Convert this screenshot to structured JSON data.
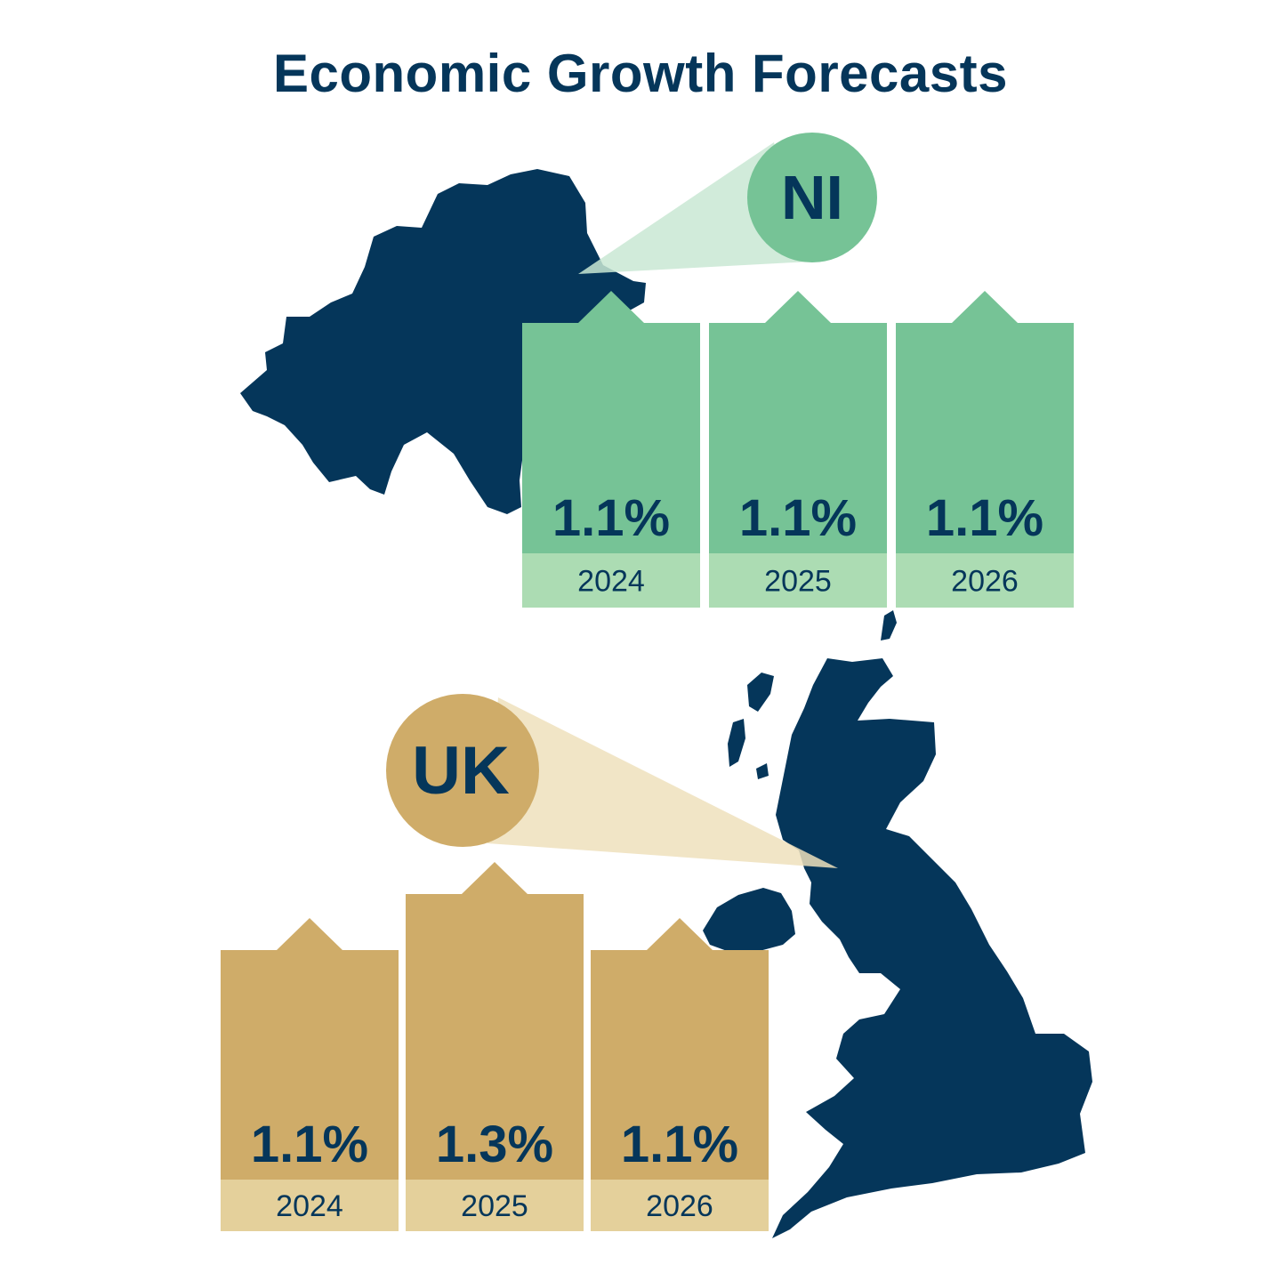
{
  "title": "Economic Growth Forecasts",
  "colors": {
    "navy": "#05365a",
    "ni_bar": "#76c396",
    "ni_label_bg": "#acdcb3",
    "ni_beam": "#c9e8d3",
    "uk_bar": "#cfac69",
    "uk_label_bg": "#e4d09b",
    "uk_beam": "#efe1bc"
  },
  "chart_data": [
    {
      "type": "bar",
      "region": "NI",
      "categories": [
        "2024",
        "2025",
        "2026"
      ],
      "values": [
        1.1,
        1.1,
        1.1
      ],
      "value_labels": [
        "1.1%",
        "1.1%",
        "1.1%"
      ],
      "unit": "%"
    },
    {
      "type": "bar",
      "region": "UK",
      "categories": [
        "2024",
        "2025",
        "2026"
      ],
      "values": [
        1.1,
        1.3,
        1.1
      ],
      "value_labels": [
        "1.1%",
        "1.3%",
        "1.1%"
      ],
      "unit": "%"
    }
  ]
}
